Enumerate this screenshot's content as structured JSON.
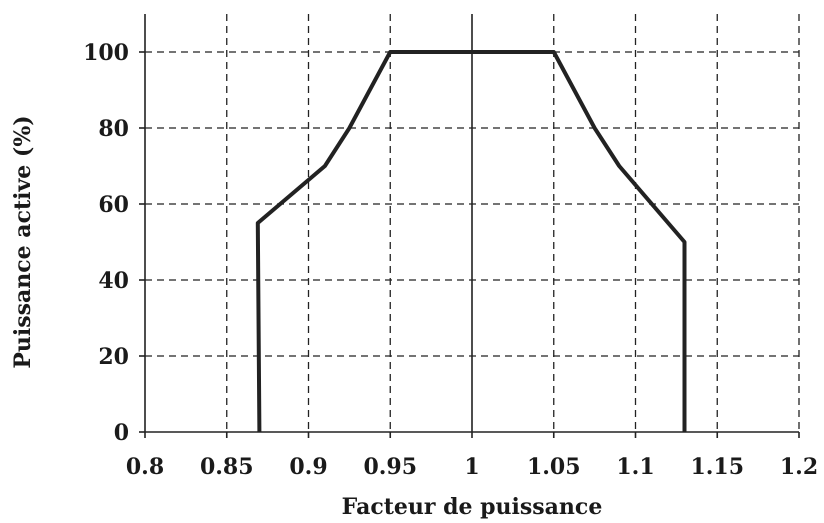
{
  "chart_data": {
    "type": "line",
    "xlabel": "Facteur de puissance",
    "ylabel": "Puissance active (%)",
    "xlim": [
      0.8,
      1.2
    ],
    "ylim": [
      0,
      100
    ],
    "x_ticks": [
      0.8,
      0.85,
      0.9,
      0.95,
      1.0,
      1.05,
      1.1,
      1.15,
      1.2
    ],
    "x_tick_labels": [
      "0.8",
      "0.85",
      "0.9",
      "0.95",
      "1",
      "1.05",
      "1.1",
      "1.15",
      "1.2"
    ],
    "y_ticks": [
      0,
      20,
      40,
      60,
      80,
      100
    ],
    "y_tick_labels": [
      "0",
      "20",
      "40",
      "60",
      "80",
      "100"
    ],
    "grid": true,
    "grid_style": "dashed",
    "series": [
      {
        "points": [
          [
            0.87,
            0
          ],
          [
            0.869,
            55
          ],
          [
            0.91,
            70
          ],
          [
            0.925,
            80
          ],
          [
            0.95,
            100
          ],
          [
            1.05,
            100
          ],
          [
            1.075,
            80
          ],
          [
            1.09,
            70
          ],
          [
            1.13,
            50
          ],
          [
            1.13,
            0
          ]
        ]
      }
    ],
    "line_color": "#222222"
  }
}
